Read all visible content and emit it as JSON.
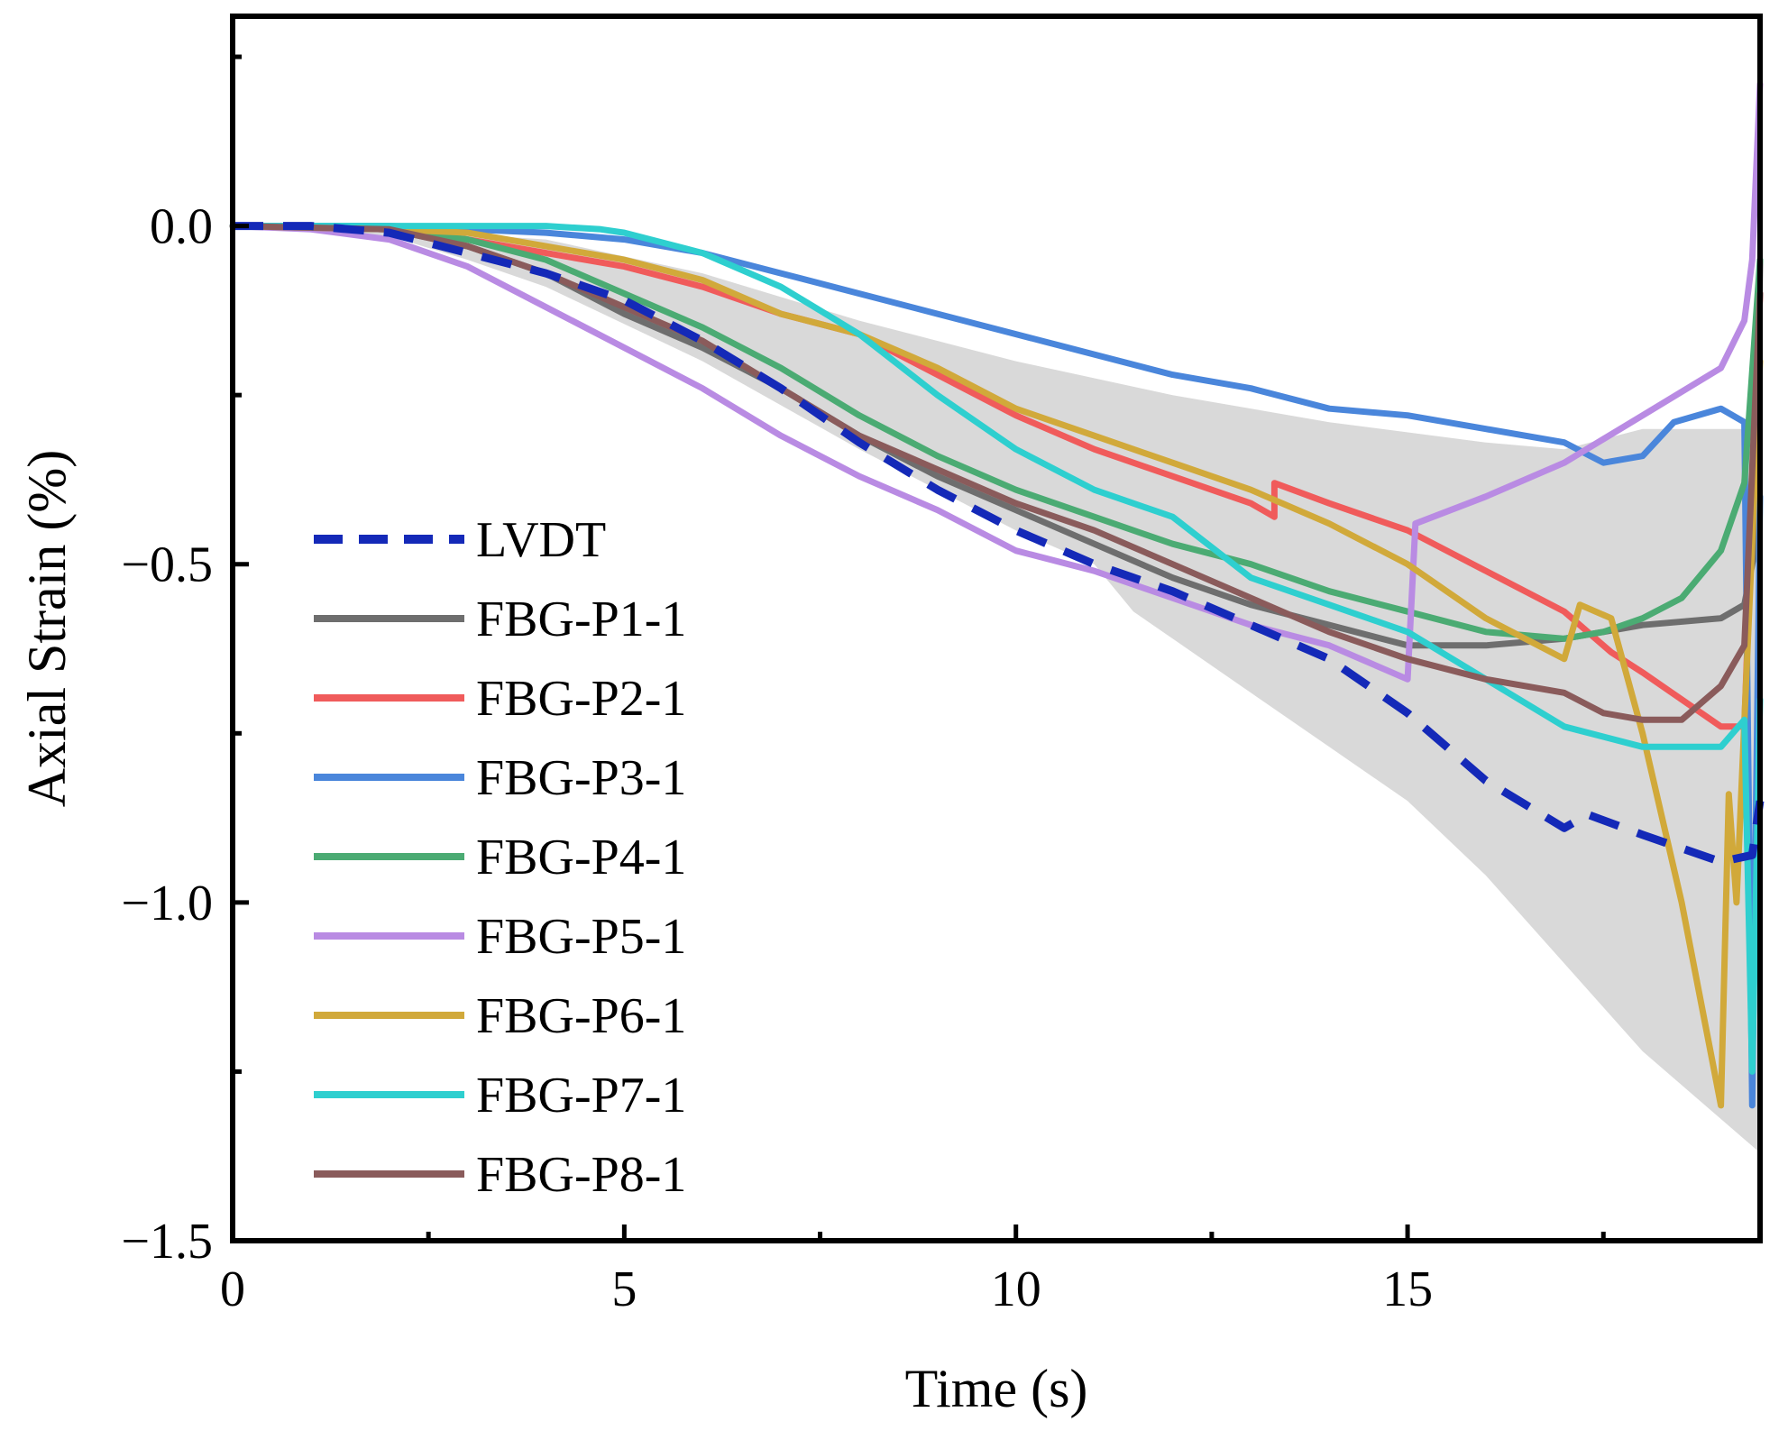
{
  "chart_data": {
    "type": "line",
    "xlabel": "Time (s)",
    "ylabel": "Axial Strain (%)",
    "xlim": [
      0,
      19.5
    ],
    "ylim": [
      -1.5,
      0.31
    ],
    "xticks": [
      0,
      5,
      10,
      15
    ],
    "xtick_labels": [
      "0",
      "5",
      "10",
      "15"
    ],
    "yticks": [
      0.0,
      -0.5,
      -1.0,
      -1.5
    ],
    "ytick_labels": [
      "0.0",
      "−0.5",
      "−1.0",
      "−1.5"
    ],
    "legend_position": "left-middle",
    "envelope": {
      "color": "#d9d9d9",
      "upper": [
        [
          0,
          0
        ],
        [
          2,
          -0.005
        ],
        [
          4,
          -0.02
        ],
        [
          6,
          -0.07
        ],
        [
          8,
          -0.14
        ],
        [
          10,
          -0.2
        ],
        [
          12,
          -0.25
        ],
        [
          14,
          -0.29
        ],
        [
          16,
          -0.32
        ],
        [
          17,
          -0.33
        ],
        [
          18,
          -0.3
        ],
        [
          19,
          -0.3
        ],
        [
          19.5,
          -0.3
        ]
      ],
      "lower": [
        [
          19.5,
          -1.37
        ],
        [
          19,
          -1.32
        ],
        [
          18,
          -1.22
        ],
        [
          17,
          -1.09
        ],
        [
          16,
          -0.96
        ],
        [
          15,
          -0.85
        ],
        [
          14,
          -0.77
        ],
        [
          13,
          -0.69
        ],
        [
          12,
          -0.61
        ],
        [
          11.5,
          -0.57
        ],
        [
          11,
          -0.5
        ],
        [
          10,
          -0.45
        ],
        [
          8,
          -0.33
        ],
        [
          6,
          -0.2
        ],
        [
          4,
          -0.09
        ],
        [
          3,
          -0.05
        ],
        [
          2,
          -0.015
        ],
        [
          0,
          0
        ]
      ]
    },
    "series": [
      {
        "name": "LVDT",
        "color": "#1429b8",
        "dashed": true,
        "points": [
          [
            0,
            0
          ],
          [
            1,
            0
          ],
          [
            2,
            -0.01
          ],
          [
            3,
            -0.04
          ],
          [
            4,
            -0.07
          ],
          [
            5,
            -0.11
          ],
          [
            6,
            -0.17
          ],
          [
            7,
            -0.24
          ],
          [
            8,
            -0.32
          ],
          [
            9,
            -0.39
          ],
          [
            10,
            -0.45
          ],
          [
            11,
            -0.5
          ],
          [
            12,
            -0.54
          ],
          [
            13,
            -0.59
          ],
          [
            14,
            -0.64
          ],
          [
            15,
            -0.72
          ],
          [
            16,
            -0.82
          ],
          [
            17,
            -0.89
          ],
          [
            17.3,
            -0.87
          ],
          [
            18,
            -0.9
          ],
          [
            19,
            -0.94
          ],
          [
            19.4,
            -0.93
          ],
          [
            19.5,
            -0.85
          ]
        ]
      },
      {
        "name": "FBG-P1-1",
        "color": "#6e6e6e",
        "dashed": false,
        "points": [
          [
            0,
            0
          ],
          [
            2,
            -0.005
          ],
          [
            3,
            -0.03
          ],
          [
            4,
            -0.07
          ],
          [
            5,
            -0.13
          ],
          [
            6,
            -0.18
          ],
          [
            7,
            -0.24
          ],
          [
            8,
            -0.31
          ],
          [
            9,
            -0.37
          ],
          [
            10,
            -0.42
          ],
          [
            11,
            -0.47
          ],
          [
            12,
            -0.52
          ],
          [
            13,
            -0.56
          ],
          [
            14,
            -0.59
          ],
          [
            15,
            -0.62
          ],
          [
            16,
            -0.62
          ],
          [
            17,
            -0.61
          ],
          [
            18,
            -0.59
          ],
          [
            19,
            -0.58
          ],
          [
            19.3,
            -0.56
          ],
          [
            19.45,
            -0.47
          ],
          [
            19.5,
            -0.05
          ]
        ]
      },
      {
        "name": "FBG-P2-1",
        "color": "#f05b5b",
        "dashed": false,
        "points": [
          [
            0,
            0
          ],
          [
            2,
            -0.005
          ],
          [
            3,
            -0.02
          ],
          [
            4,
            -0.04
          ],
          [
            5,
            -0.06
          ],
          [
            6,
            -0.09
          ],
          [
            7,
            -0.13
          ],
          [
            8,
            -0.16
          ],
          [
            9,
            -0.22
          ],
          [
            10,
            -0.28
          ],
          [
            11,
            -0.33
          ],
          [
            12,
            -0.37
          ],
          [
            13,
            -0.41
          ],
          [
            13.3,
            -0.43
          ],
          [
            13.3,
            -0.38
          ],
          [
            14,
            -0.41
          ],
          [
            15,
            -0.45
          ],
          [
            16,
            -0.51
          ],
          [
            17,
            -0.57
          ],
          [
            17.3,
            -0.6
          ],
          [
            17.6,
            -0.63
          ],
          [
            18,
            -0.66
          ],
          [
            18.5,
            -0.7
          ],
          [
            19,
            -0.74
          ],
          [
            19.3,
            -0.74
          ],
          [
            19.5,
            -0.1
          ]
        ]
      },
      {
        "name": "FBG-P3-1",
        "color": "#4a86db",
        "dashed": false,
        "points": [
          [
            0,
            0
          ],
          [
            2,
            0
          ],
          [
            3,
            -0.005
          ],
          [
            4,
            -0.01
          ],
          [
            5,
            -0.02
          ],
          [
            6,
            -0.04
          ],
          [
            7,
            -0.07
          ],
          [
            8,
            -0.1
          ],
          [
            9,
            -0.13
          ],
          [
            10,
            -0.16
          ],
          [
            11,
            -0.19
          ],
          [
            12,
            -0.22
          ],
          [
            13,
            -0.24
          ],
          [
            14,
            -0.27
          ],
          [
            15,
            -0.28
          ],
          [
            16,
            -0.3
          ],
          [
            17,
            -0.32
          ],
          [
            17.5,
            -0.35
          ],
          [
            18,
            -0.34
          ],
          [
            18.4,
            -0.29
          ],
          [
            19,
            -0.27
          ],
          [
            19.3,
            -0.29
          ],
          [
            19.4,
            -1.3
          ],
          [
            19.5,
            -0.4
          ]
        ]
      },
      {
        "name": "FBG-P4-1",
        "color": "#4bab73",
        "dashed": false,
        "points": [
          [
            0,
            0
          ],
          [
            2,
            -0.005
          ],
          [
            3,
            -0.02
          ],
          [
            4,
            -0.05
          ],
          [
            5,
            -0.1
          ],
          [
            6,
            -0.15
          ],
          [
            7,
            -0.21
          ],
          [
            8,
            -0.28
          ],
          [
            9,
            -0.34
          ],
          [
            10,
            -0.39
          ],
          [
            11,
            -0.43
          ],
          [
            12,
            -0.47
          ],
          [
            13,
            -0.5
          ],
          [
            14,
            -0.54
          ],
          [
            15,
            -0.57
          ],
          [
            16,
            -0.6
          ],
          [
            17,
            -0.61
          ],
          [
            17.5,
            -0.6
          ],
          [
            18,
            -0.58
          ],
          [
            18.5,
            -0.55
          ],
          [
            19,
            -0.48
          ],
          [
            19.3,
            -0.38
          ],
          [
            19.5,
            -0.05
          ]
        ]
      },
      {
        "name": "FBG-P5-1",
        "color": "#b98be3",
        "dashed": false,
        "points": [
          [
            0,
            0
          ],
          [
            1,
            -0.005
          ],
          [
            2,
            -0.02
          ],
          [
            3,
            -0.06
          ],
          [
            4,
            -0.12
          ],
          [
            5,
            -0.18
          ],
          [
            6,
            -0.24
          ],
          [
            7,
            -0.31
          ],
          [
            8,
            -0.37
          ],
          [
            9,
            -0.42
          ],
          [
            10,
            -0.48
          ],
          [
            11,
            -0.51
          ],
          [
            12,
            -0.55
          ],
          [
            13,
            -0.59
          ],
          [
            14,
            -0.62
          ],
          [
            15,
            -0.67
          ],
          [
            15.1,
            -0.44
          ],
          [
            16,
            -0.4
          ],
          [
            17,
            -0.35
          ],
          [
            18,
            -0.28
          ],
          [
            19,
            -0.21
          ],
          [
            19.3,
            -0.14
          ],
          [
            19.4,
            -0.05
          ],
          [
            19.5,
            0.21
          ]
        ]
      },
      {
        "name": "FBG-P6-1",
        "color": "#d1a93a",
        "dashed": false,
        "points": [
          [
            0,
            0
          ],
          [
            2,
            -0.005
          ],
          [
            3,
            -0.01
          ],
          [
            4,
            -0.03
          ],
          [
            5,
            -0.05
          ],
          [
            6,
            -0.08
          ],
          [
            7,
            -0.13
          ],
          [
            8,
            -0.16
          ],
          [
            9,
            -0.21
          ],
          [
            10,
            -0.27
          ],
          [
            11,
            -0.31
          ],
          [
            12,
            -0.35
          ],
          [
            13,
            -0.39
          ],
          [
            14,
            -0.44
          ],
          [
            15,
            -0.5
          ],
          [
            16,
            -0.58
          ],
          [
            17,
            -0.64
          ],
          [
            17.2,
            -0.56
          ],
          [
            17.6,
            -0.58
          ],
          [
            18,
            -0.75
          ],
          [
            18.5,
            -1.0
          ],
          [
            19,
            -1.3
          ],
          [
            19.1,
            -0.84
          ],
          [
            19.2,
            -1.0
          ],
          [
            19.5,
            -0.2
          ]
        ]
      },
      {
        "name": "FBG-P7-1",
        "color": "#2ecfcf",
        "dashed": false,
        "points": [
          [
            0,
            0
          ],
          [
            2,
            0
          ],
          [
            3,
            0
          ],
          [
            4,
            0
          ],
          [
            4.7,
            -0.005
          ],
          [
            5,
            -0.01
          ],
          [
            6,
            -0.04
          ],
          [
            7,
            -0.09
          ],
          [
            8,
            -0.16
          ],
          [
            9,
            -0.25
          ],
          [
            10,
            -0.33
          ],
          [
            11,
            -0.39
          ],
          [
            12,
            -0.43
          ],
          [
            13,
            -0.52
          ],
          [
            14,
            -0.56
          ],
          [
            15,
            -0.6
          ],
          [
            16,
            -0.67
          ],
          [
            17,
            -0.74
          ],
          [
            18,
            -0.77
          ],
          [
            19,
            -0.77
          ],
          [
            19.3,
            -0.73
          ],
          [
            19.4,
            -1.25
          ],
          [
            19.5,
            -0.7
          ]
        ]
      },
      {
        "name": "FBG-P8-1",
        "color": "#8a5b5b",
        "dashed": false,
        "points": [
          [
            0,
            0
          ],
          [
            2,
            -0.005
          ],
          [
            3,
            -0.03
          ],
          [
            4,
            -0.07
          ],
          [
            5,
            -0.12
          ],
          [
            6,
            -0.17
          ],
          [
            7,
            -0.24
          ],
          [
            8,
            -0.31
          ],
          [
            9,
            -0.36
          ],
          [
            10,
            -0.41
          ],
          [
            11,
            -0.45
          ],
          [
            12,
            -0.5
          ],
          [
            13,
            -0.55
          ],
          [
            14,
            -0.6
          ],
          [
            15,
            -0.64
          ],
          [
            16,
            -0.67
          ],
          [
            17,
            -0.69
          ],
          [
            17.5,
            -0.72
          ],
          [
            18,
            -0.73
          ],
          [
            18.5,
            -0.73
          ],
          [
            19,
            -0.68
          ],
          [
            19.3,
            -0.62
          ],
          [
            19.5,
            -0.1
          ]
        ]
      }
    ]
  }
}
